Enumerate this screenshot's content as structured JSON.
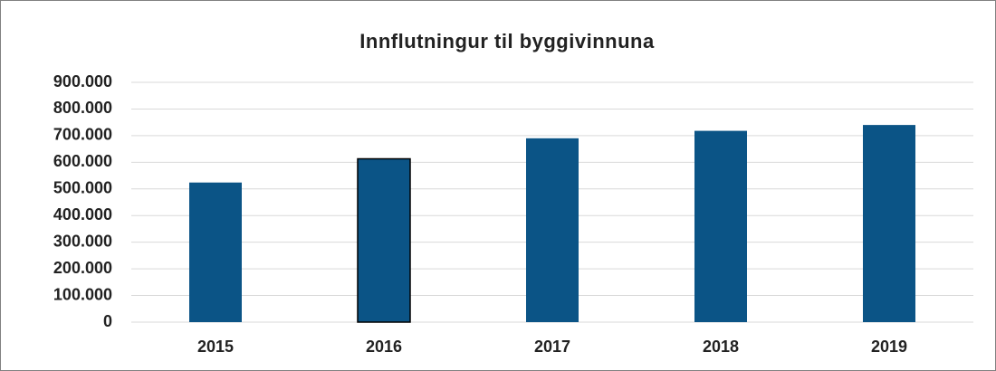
{
  "chart_data": {
    "type": "bar",
    "title": "Innflutningur til byggivinnuna",
    "categories": [
      "2015",
      "2016",
      "2017",
      "2018",
      "2019"
    ],
    "values": [
      524000,
      613000,
      690000,
      718000,
      740000
    ],
    "color": "#0b5486",
    "ylim": [
      0,
      900000
    ],
    "yticks": [
      0,
      {
        "value": 100000,
        "label": "100.000"
      },
      {
        "value": 200000,
        "label": "200.000"
      },
      {
        "value": 300000,
        "label": "300.000"
      },
      {
        "value": 400000,
        "label": "400.000"
      },
      {
        "value": 500000,
        "label": "500.000"
      },
      {
        "value": 600000,
        "label": "600.000"
      },
      {
        "value": 700000,
        "label": "700.000"
      },
      {
        "value": 800000,
        "label": "800.000"
      },
      {
        "value": 900000,
        "label": "900.000"
      }
    ],
    "grid": true
  }
}
